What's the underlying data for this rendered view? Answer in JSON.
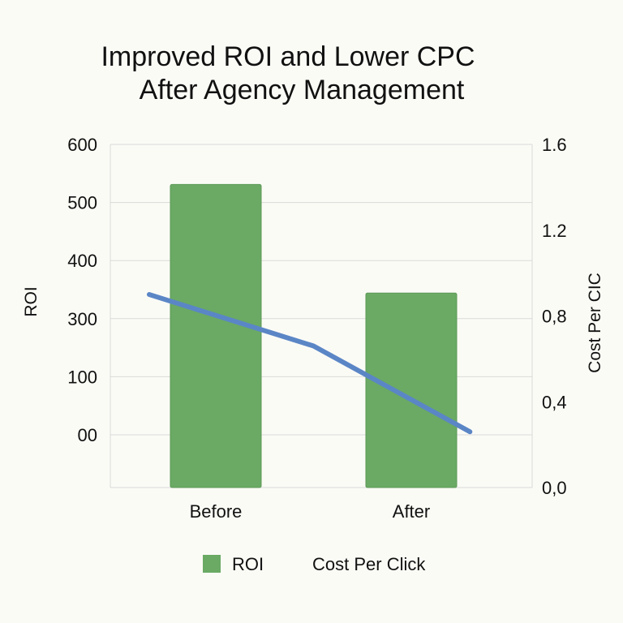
{
  "chart_data": {
    "type": "bar",
    "title_lines": [
      "Improved ROI and Lower CPC",
      "After Agency Management"
    ],
    "categories": [
      "Before",
      "After"
    ],
    "left_axis": {
      "label": "ROI",
      "tick_labels": [
        "00",
        "100",
        "300",
        "400",
        "500",
        "600"
      ],
      "ylim": [
        0,
        600
      ]
    },
    "right_axis": {
      "label": "Cost Per CIC",
      "tick_labels": [
        "0,0",
        "0,4",
        "0,8",
        "1.2",
        "1.6"
      ],
      "ylim": [
        0,
        1.6
      ]
    },
    "series": [
      {
        "name": "ROI",
        "type": "bar",
        "axis": "left",
        "color": "#6aaa64",
        "values": [
          530,
          340
        ]
      },
      {
        "name": "Cost Per Click",
        "type": "line",
        "axis": "right",
        "color": "#5b86c6",
        "points": [
          [
            0.0,
            0.9
          ],
          [
            0.5,
            0.66
          ],
          [
            1.0,
            0.41
          ],
          [
            1.3,
            0.26
          ]
        ]
      }
    ],
    "legend": {
      "position": "bottom",
      "entries": [
        "ROI",
        "Cost Per Click"
      ]
    },
    "grid": true
  }
}
